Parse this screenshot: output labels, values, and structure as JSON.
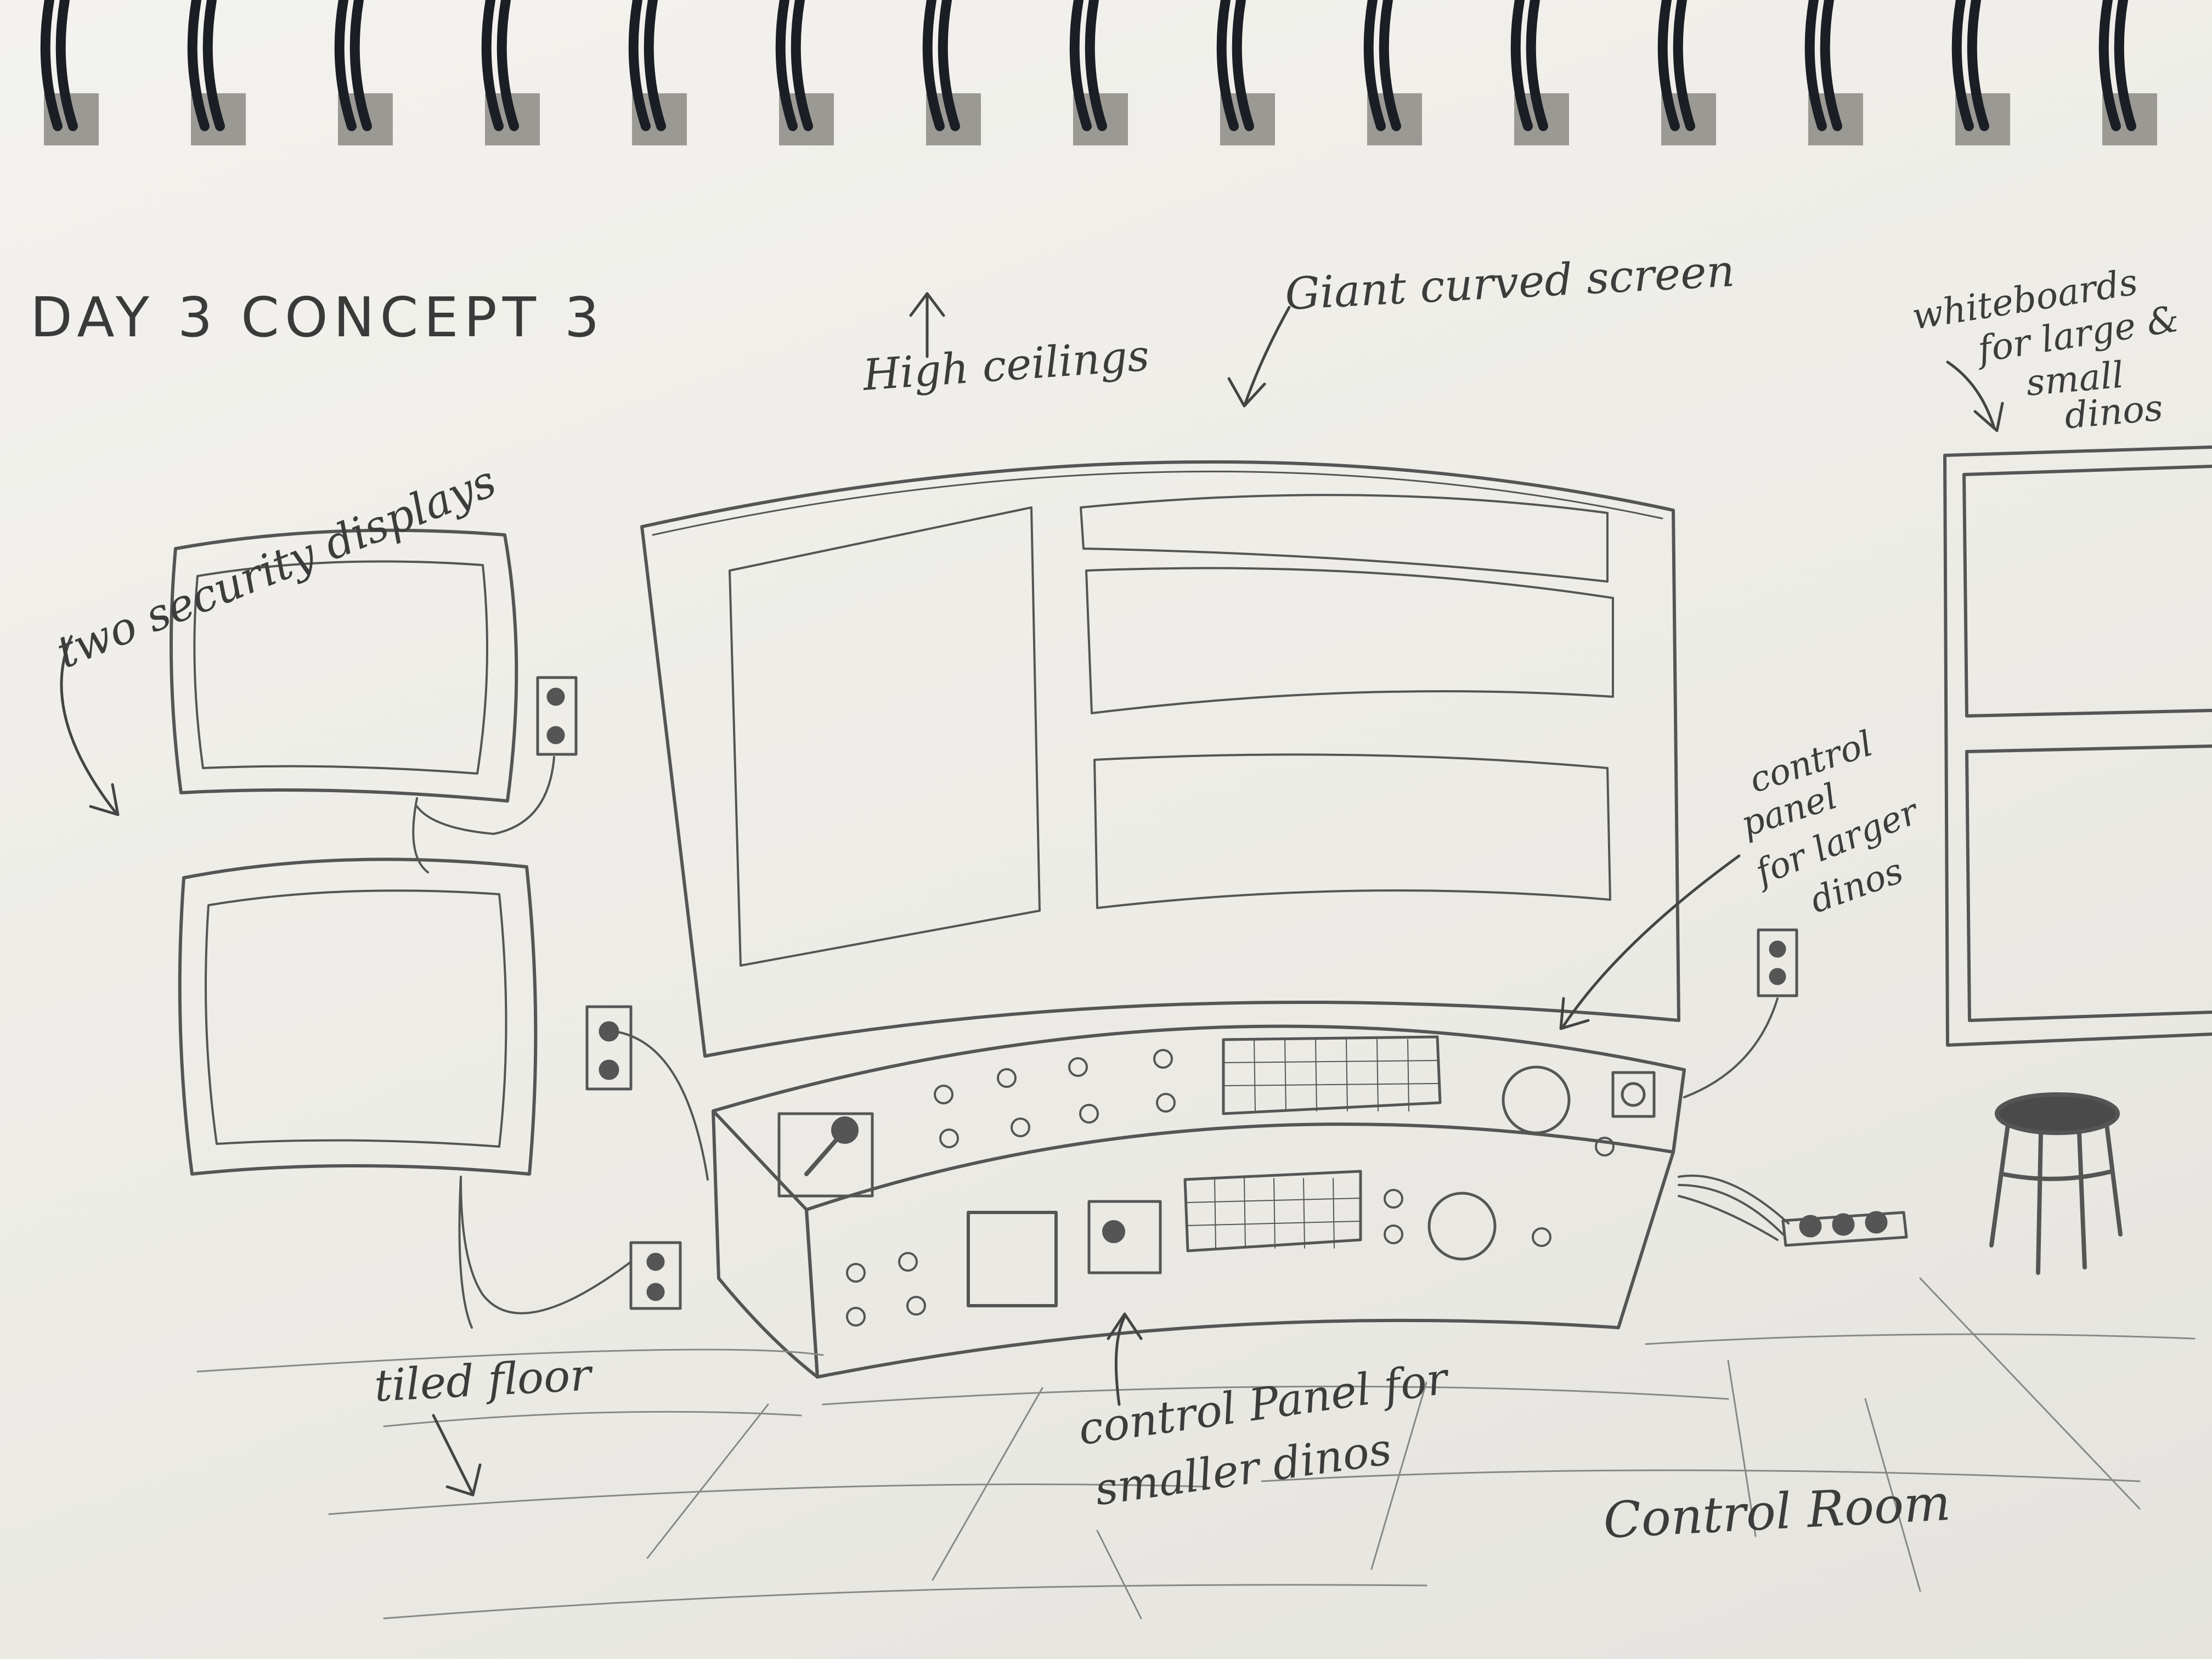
{
  "page_title": "DAY 3   CONCEPT 3",
  "footer_title": "Control Room",
  "annotations": {
    "ceilings": "High ceilings",
    "screen": "Giant curved screen",
    "whiteboards_1": "whiteboards",
    "whiteboards_2": "for large &",
    "whiteboards_3": "small",
    "whiteboards_4": "dinos",
    "security": "two security displays",
    "large_panel_1": "control",
    "large_panel_2": "panel",
    "large_panel_3": "for larger",
    "large_panel_4": "dinos",
    "floor": "tiled floor",
    "small_panel_1": "control Panel for",
    "small_panel_2": "smaller dinos"
  },
  "colors": {
    "paper": "#f0efeb",
    "pencil": "#555555",
    "binding_wire": "#1b1e24",
    "desk_background": "#8a6a4a"
  }
}
